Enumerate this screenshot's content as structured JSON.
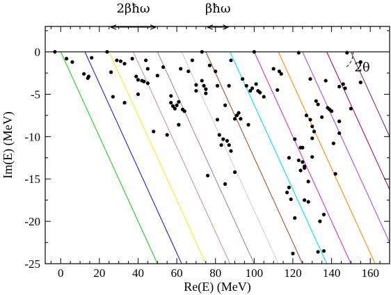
{
  "chart_data": {
    "type": "scatter",
    "title": "",
    "xlabel": "Re(E) (MeV)",
    "ylabel": "Im(E) (MeV)",
    "xlim": [
      -8,
      170
    ],
    "ylim": [
      -25,
      3
    ],
    "xticks": [
      0,
      20,
      40,
      60,
      80,
      100,
      120,
      140,
      160
    ],
    "yticks": [
      0,
      -5,
      -10,
      -15,
      -20,
      -25
    ],
    "grid": false,
    "legend": "none",
    "zero_line": 0,
    "lines": {
      "slope": -0.5,
      "spacing_mev": 12.5,
      "starts": [
        0,
        12.5,
        25,
        37.5,
        50,
        62.5,
        75,
        87.5,
        100,
        112.5,
        125,
        137.5,
        150
      ],
      "colors": [
        "#22cc22",
        "#1f1fd6",
        "#f2ee20",
        "#cc9999",
        "#b080b0",
        "#d0d0d0",
        "#a0522d",
        "#00e0ee",
        "#cc33cc",
        "#ff8c00",
        "#a050ff",
        "#991166",
        "#803060"
      ]
    },
    "points": [
      [
        -3,
        0
      ],
      [
        3,
        -0.8
      ],
      [
        6,
        -1.2
      ],
      [
        12,
        -2.6
      ],
      [
        14,
        -3.1
      ],
      [
        16,
        -0.7
      ],
      [
        14.5,
        -2.9
      ],
      [
        24,
        0
      ],
      [
        26,
        -2.4
      ],
      [
        27,
        -5.3
      ],
      [
        29,
        -1.0
      ],
      [
        31,
        -1.1
      ],
      [
        33,
        -1.4
      ],
      [
        33,
        -6.0
      ],
      [
        37,
        -0.8
      ],
      [
        39,
        -2.9
      ],
      [
        40,
        -3.3
      ],
      [
        40,
        -5.0
      ],
      [
        42,
        -3.4
      ],
      [
        43,
        -3.5
      ],
      [
        44,
        -1.0
      ],
      [
        45,
        -2.0
      ],
      [
        45,
        -3.7
      ],
      [
        48,
        -9.4
      ],
      [
        50,
        -2.8
      ],
      [
        53,
        -1.8
      ],
      [
        55,
        -9.8
      ],
      [
        57,
        -5.2
      ],
      [
        57,
        -6.0
      ],
      [
        58,
        -6.4
      ],
      [
        59,
        -6.7
      ],
      [
        60,
        -6.3
      ],
      [
        61,
        -5.9
      ],
      [
        61,
        -8.6
      ],
      [
        63,
        -6.8
      ],
      [
        64,
        -7.0
      ],
      [
        62,
        -2.0
      ],
      [
        66,
        -2.3
      ],
      [
        68,
        -1.0
      ],
      [
        70,
        -3.9
      ],
      [
        70,
        -4.6
      ],
      [
        73,
        0
      ],
      [
        73,
        -3.4
      ],
      [
        74,
        -4.0
      ],
      [
        75,
        -4.4
      ],
      [
        75,
        -4.9
      ],
      [
        76,
        -14.6
      ],
      [
        77,
        -1.6
      ],
      [
        80,
        -2.3
      ],
      [
        81,
        -4.0
      ],
      [
        81,
        -8.0
      ],
      [
        82,
        -9.8
      ],
      [
        83,
        -11.0
      ],
      [
        84,
        -10.3
      ],
      [
        85,
        -6.3
      ],
      [
        85,
        -15.6
      ],
      [
        86,
        -10.5
      ],
      [
        87,
        -4.0
      ],
      [
        87,
        -11.0
      ],
      [
        88,
        -1.0
      ],
      [
        88,
        -11.7
      ],
      [
        90,
        -7.9
      ],
      [
        90,
        -14.2
      ],
      [
        91,
        -7.5
      ],
      [
        92,
        -7.2
      ],
      [
        93,
        -7.9
      ],
      [
        94,
        -3.2
      ],
      [
        96,
        -4.0
      ],
      [
        97,
        -8.6
      ],
      [
        98,
        -4.6
      ],
      [
        99,
        -4.3
      ],
      [
        100,
        0
      ],
      [
        101,
        -3.8
      ],
      [
        102,
        -4.6
      ],
      [
        103,
        -4.8
      ],
      [
        105,
        -5.3
      ],
      [
        110,
        -2.0
      ],
      [
        112,
        -4.5
      ],
      [
        113,
        -2.3
      ],
      [
        114,
        -2.6
      ],
      [
        117,
        -16.6
      ],
      [
        118,
        -12.5
      ],
      [
        118,
        -16.0
      ],
      [
        119,
        -17.4
      ],
      [
        120,
        -23.8
      ],
      [
        121,
        -19.6
      ],
      [
        121,
        -10.3
      ],
      [
        123,
        -0.1
      ],
      [
        123,
        -12.8
      ],
      [
        124,
        -11.3
      ],
      [
        124,
        -14.0
      ],
      [
        125,
        -11.3
      ],
      [
        125,
        -13.0
      ],
      [
        126,
        -13.5
      ],
      [
        126,
        -13.7
      ],
      [
        126,
        -17.5
      ],
      [
        127,
        -7.5
      ],
      [
        128,
        -15.3
      ],
      [
        128,
        -17.7
      ],
      [
        129,
        -3.2
      ],
      [
        129,
        -8.0
      ],
      [
        130,
        -8.8
      ],
      [
        130,
        -10.2
      ],
      [
        130,
        -12.4
      ],
      [
        131,
        -9.4
      ],
      [
        132,
        -5.8
      ],
      [
        133,
        -6.2
      ],
      [
        133,
        -23.6
      ],
      [
        134,
        -20.0
      ],
      [
        135,
        -7.7
      ],
      [
        136,
        -19.2
      ],
      [
        136,
        -23.5
      ],
      [
        137,
        -3.4
      ],
      [
        138,
        -6.6
      ],
      [
        139,
        -6.8
      ],
      [
        140,
        -7.0
      ],
      [
        141,
        -10.8
      ],
      [
        142,
        -14.4
      ],
      [
        144,
        -8.2
      ],
      [
        144,
        -9.6
      ],
      [
        144,
        -4.1
      ],
      [
        146,
        -3.8
      ],
      [
        147,
        -4.3
      ],
      [
        148,
        -0.1
      ],
      [
        150,
        -6.7
      ],
      [
        155,
        -1.2
      ],
      [
        155,
        -3.6
      ]
    ],
    "annotations": [
      {
        "text": "2βħω",
        "arrow_from": 25,
        "arrow_to": 50,
        "y": 3.0
      },
      {
        "text": "βħω",
        "arrow_from": 75,
        "arrow_to": 87.5,
        "y": 3.0
      },
      {
        "text": "2θ",
        "y": -1.5
      }
    ]
  }
}
